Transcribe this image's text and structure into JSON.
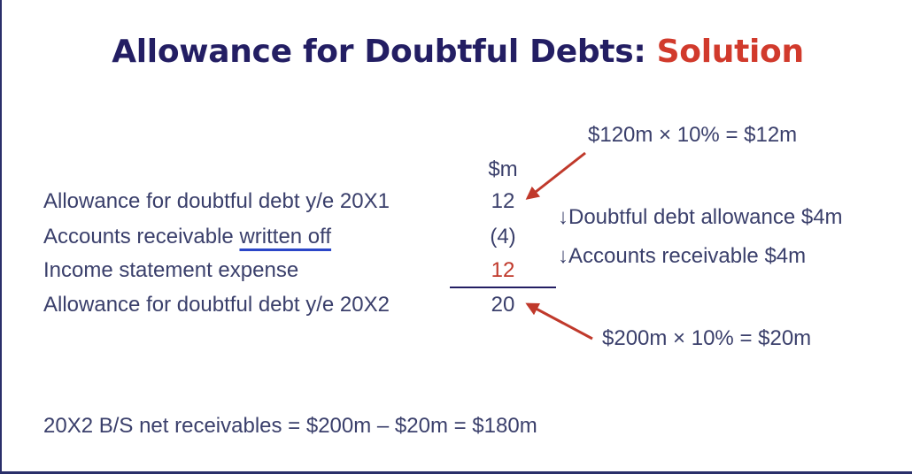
{
  "title": {
    "main": "Allowance for Doubtful Debts:",
    "accent": "Solution"
  },
  "column_header": "$m",
  "rows": [
    {
      "label": "Allowance for doubtful debt y/e 20X1",
      "value": "12"
    },
    {
      "label_prefix": "Accounts receivable ",
      "label_underlined": "written off",
      "value": "(4)"
    },
    {
      "label": "Income statement expense",
      "value": "12"
    },
    {
      "label": "Allowance for doubtful debt y/e 20X2",
      "value": "20"
    }
  ],
  "annotations": {
    "top_calc": "$120m × 10% = $12m",
    "bottom_calc": "$200m × 10% = $20m",
    "note_allowance": "↓Doubtful debt allowance $4m",
    "note_receivable": "↓Accounts receivable $4m"
  },
  "footer": "20X2 B/S net receivables = $200m – $20m = $180m",
  "colors": {
    "title": "#231e63",
    "accent": "#d13a2c",
    "text": "#3a3f6b",
    "underline": "#2b46c8",
    "arrow": "#c0392b"
  }
}
